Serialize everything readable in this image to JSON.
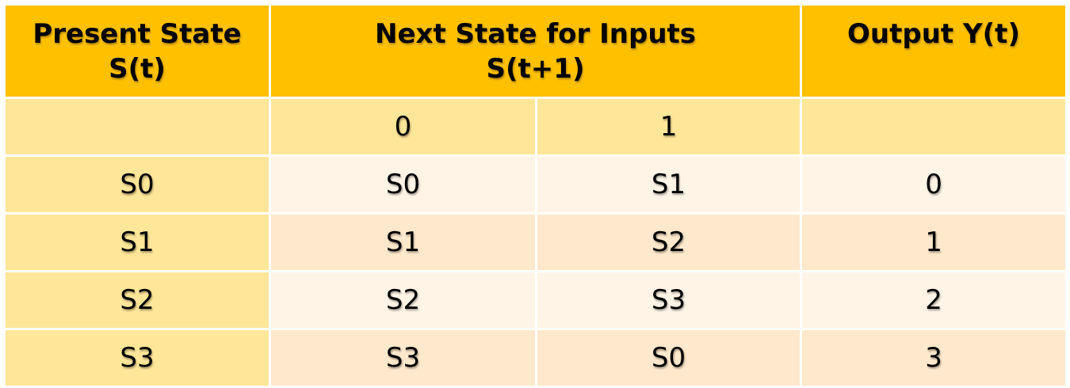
{
  "table": {
    "headers": {
      "present_state": [
        "Present State",
        "S(t)"
      ],
      "next_state": [
        "Next State for Inputs",
        "S(t+1)"
      ],
      "output": "Output Y(t)"
    },
    "input_values": [
      "0",
      "1"
    ],
    "rows": [
      {
        "present": "S0",
        "next0": "S0",
        "next1": "S1",
        "output": "0"
      },
      {
        "present": "S1",
        "next0": "S1",
        "next1": "S2",
        "output": "1"
      },
      {
        "present": "S2",
        "next0": "S2",
        "next1": "S3",
        "output": "2"
      },
      {
        "present": "S3",
        "next0": "S3",
        "next1": "S0",
        "output": "3"
      }
    ],
    "colors": {
      "header": "#FFC000",
      "subheader": "#FFE699",
      "row_light": "#FFF4E6",
      "row_dark": "#FFE8CC"
    }
  }
}
